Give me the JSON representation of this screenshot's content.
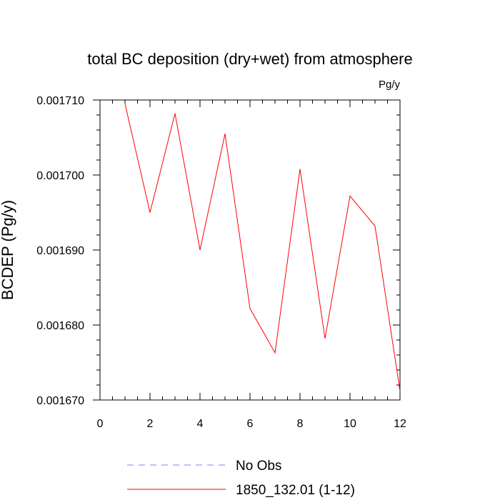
{
  "chart_data": {
    "type": "line",
    "title": "total BC deposition (dry+wet) from atmosphere",
    "units": "Pg/y",
    "ylabel": "BCDEP  (Pg/y)",
    "xlabel": "",
    "xlim": [
      0,
      12
    ],
    "ylim": [
      0.00167,
      0.00171
    ],
    "x_ticks": [
      0,
      2,
      4,
      6,
      8,
      10,
      12
    ],
    "x_tick_labels": [
      "0",
      "2",
      "4",
      "6",
      "8",
      "10",
      "12"
    ],
    "y_ticks": [
      0.00171,
      0.0017,
      0.00169,
      0.00168,
      0.00167
    ],
    "y_tick_labels": [
      "0.001710",
      "0.001700",
      "0.001690",
      "0.001680",
      "0.001670"
    ],
    "grid": false,
    "legend_position": "bottom",
    "series": [
      {
        "name": "1850_132.01 (1-12)",
        "color": "#ff0000",
        "style": "solid",
        "x": [
          1,
          2,
          3,
          4,
          5,
          6,
          7,
          8,
          9,
          10,
          11,
          12
        ],
        "values": [
          0.0017095,
          0.001695,
          0.0017082,
          0.00169,
          0.0017055,
          0.0016822,
          0.0016763,
          0.0017008,
          0.0016782,
          0.0016972,
          0.0016932,
          0.0016712
        ]
      }
    ],
    "legend": [
      {
        "label": "No Obs",
        "color": "#8080ff",
        "style": "dashed"
      },
      {
        "label": "1850_132.01 (1-12)",
        "color": "#ff0000",
        "style": "solid"
      }
    ]
  }
}
